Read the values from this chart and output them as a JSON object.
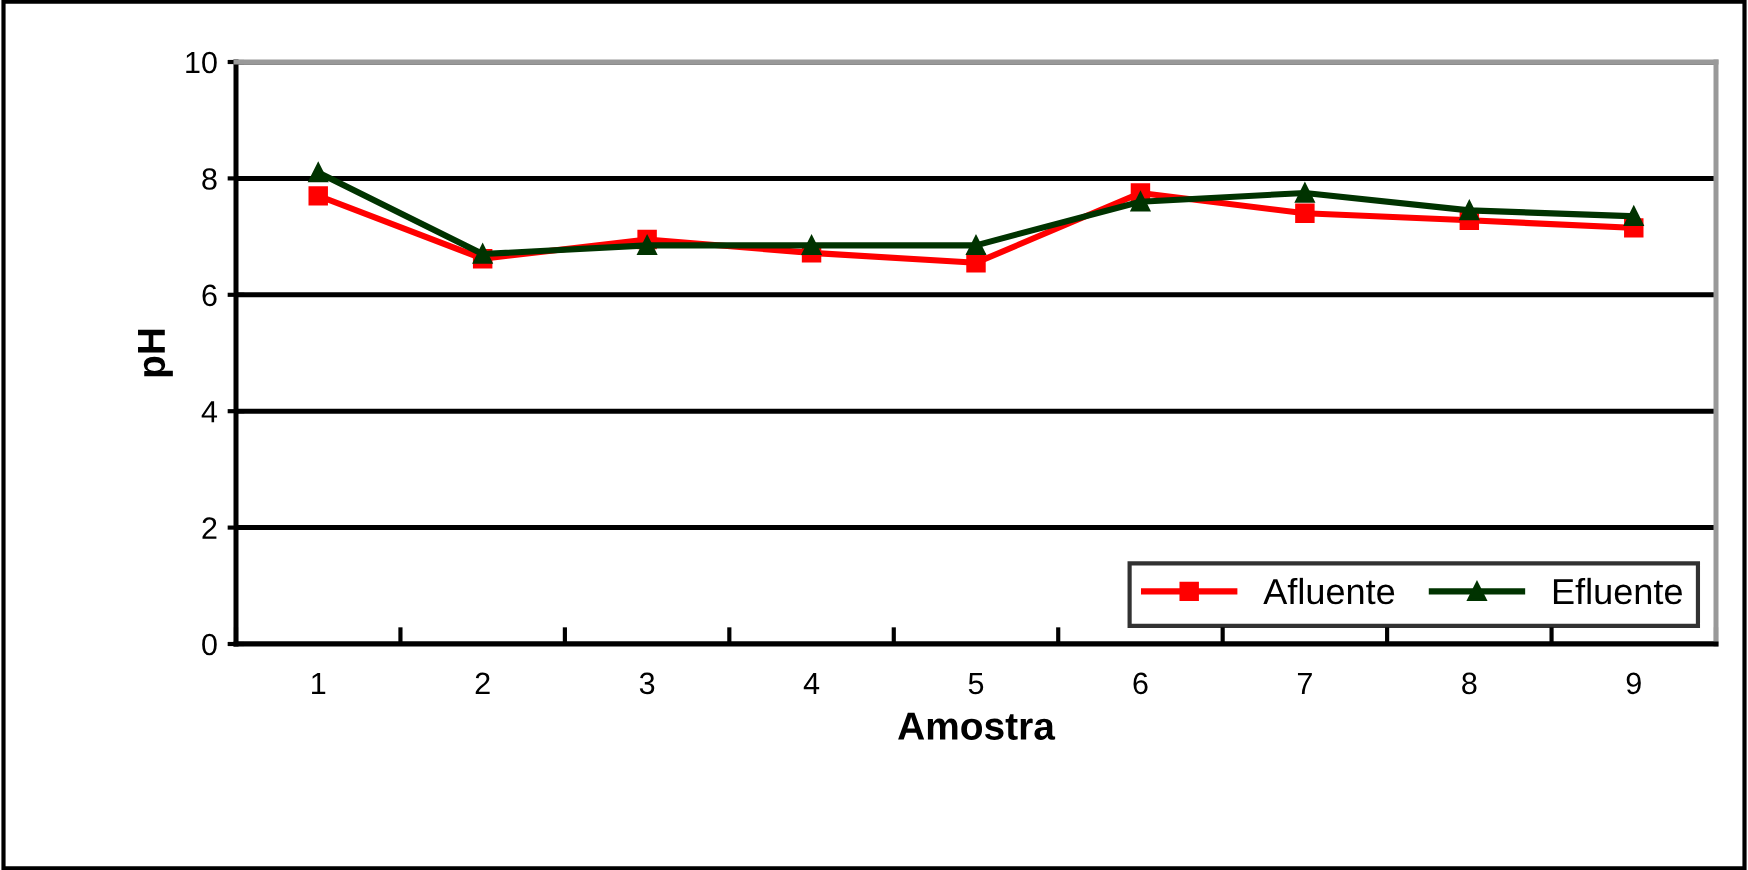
{
  "chart_data": {
    "type": "line",
    "xlabel": "Amostra",
    "ylabel": "pH",
    "categories": [
      "1",
      "2",
      "3",
      "4",
      "5",
      "6",
      "7",
      "8",
      "9"
    ],
    "series": [
      {
        "name": "Afluente",
        "color": "#ff0000",
        "marker": "square",
        "values": [
          7.7,
          6.62,
          6.95,
          6.72,
          6.55,
          7.75,
          7.4,
          7.28,
          7.15
        ]
      },
      {
        "name": "Efluente",
        "color": "#003300",
        "marker": "triangle",
        "values": [
          8.1,
          6.7,
          6.85,
          6.85,
          6.85,
          7.6,
          7.75,
          7.45,
          7.35
        ]
      }
    ],
    "ylim": [
      0,
      10
    ],
    "yticks": [
      0,
      2,
      4,
      6,
      8,
      10
    ],
    "grid": "y",
    "legend": "bottom right",
    "line_style": "solid"
  }
}
